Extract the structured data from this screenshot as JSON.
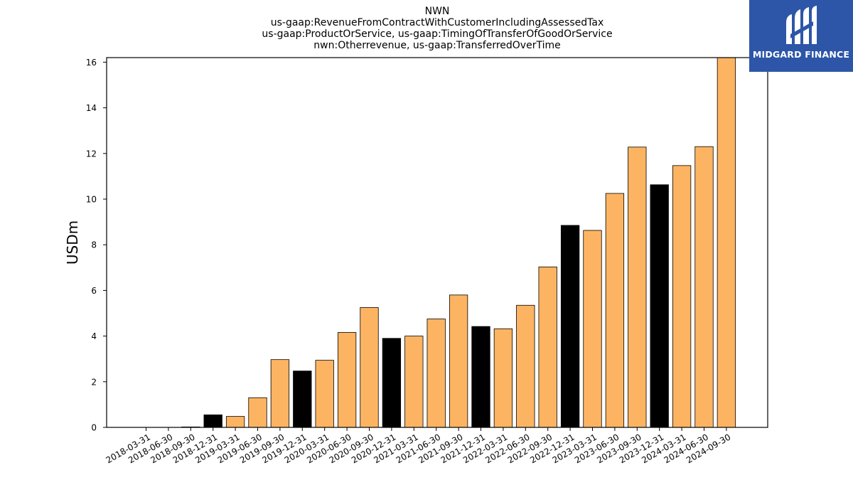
{
  "chart_data": {
    "type": "bar",
    "title_lines": [
      "NWN",
      "us-gaap:RevenueFromContractWithCustomerIncludingAssessedTax",
      "us-gaap:ProductOrService, us-gaap:TimingOfTransferOfGoodOrService",
      "nwn:Otherrevenue, us-gaap:TransferredOverTime"
    ],
    "ylabel": "USDm",
    "ylim": [
      0,
      16.2
    ],
    "yticks": [
      0,
      2,
      4,
      6,
      8,
      10,
      12,
      14,
      16
    ],
    "grid": false,
    "colors": {
      "quarter": "#fdb462",
      "year_end": "#000000",
      "edge": "#000000"
    },
    "categories": [
      "2018-03-31",
      "2018-06-30",
      "2018-09-30",
      "2018-12-31",
      "2019-03-31",
      "2019-06-30",
      "2019-09-30",
      "2019-12-31",
      "2020-03-31",
      "2020-06-30",
      "2020-09-30",
      "2020-12-31",
      "2021-03-31",
      "2021-06-30",
      "2021-09-30",
      "2021-12-31",
      "2022-03-31",
      "2022-06-30",
      "2022-09-30",
      "2022-12-31",
      "2023-03-31",
      "2023-06-30",
      "2023-09-30",
      "2023-12-31",
      "2024-03-31",
      "2024-06-30",
      "2024-09-30"
    ],
    "values": [
      0,
      0,
      0.02,
      0.55,
      0.48,
      1.3,
      2.97,
      2.47,
      2.94,
      4.16,
      5.25,
      3.9,
      4.0,
      4.75,
      5.8,
      4.42,
      4.32,
      5.35,
      7.03,
      8.85,
      8.63,
      10.25,
      12.28,
      10.63,
      11.47,
      12.3,
      16.2
    ]
  },
  "logo": {
    "text": "MIDGARD FINANCE"
  }
}
